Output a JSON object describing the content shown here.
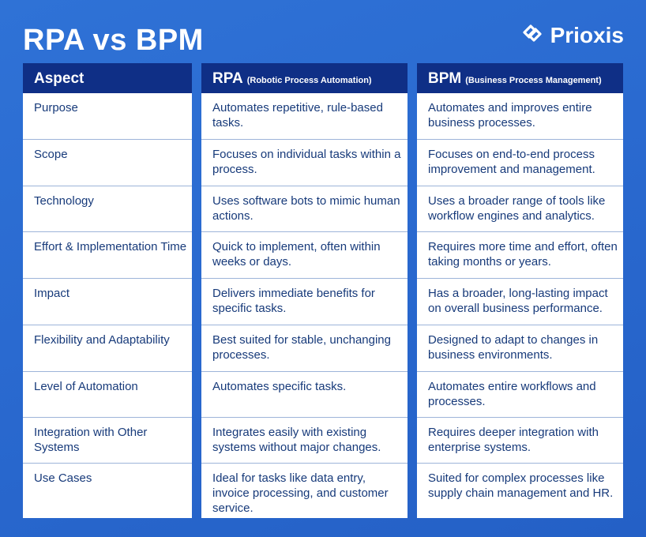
{
  "title": "RPA vs BPM",
  "brand": {
    "name": "Prioxis",
    "icon": "prioxis-logo-icon"
  },
  "colors": {
    "header_bg": "#0f2f86",
    "page_bg": "#2a6ad0",
    "text": "#173a7a"
  },
  "columns": {
    "aspect": {
      "title": "Aspect",
      "subtitle": ""
    },
    "rpa": {
      "title": "RPA",
      "subtitle": "(Robotic Process Automation)"
    },
    "bpm": {
      "title": "BPM",
      "subtitle": "(Business Process Management)"
    }
  },
  "rows": [
    {
      "aspect": "Purpose",
      "rpa": "Automates repetitive, rule-based tasks.",
      "bpm": "Automates and improves entire business processes."
    },
    {
      "aspect": "Scope",
      "rpa": "Focuses on individual tasks within a process.",
      "bpm": "Focuses on end-to-end process improvement and management."
    },
    {
      "aspect": "Technology",
      "rpa": "Uses software bots to mimic human actions.",
      "bpm": "Uses a broader range of tools like workflow engines and analytics."
    },
    {
      "aspect": "Effort & Implementation Time",
      "rpa": "Quick to implement, often within weeks or days.",
      "bpm": "Requires more time and effort, often taking months or years."
    },
    {
      "aspect": "Impact",
      "rpa": "Delivers immediate benefits for specific tasks.",
      "bpm": "Has a broader, long-lasting impact on overall business performance."
    },
    {
      "aspect": "Flexibility and Adaptability",
      "rpa": "Best suited for stable, unchanging processes.",
      "bpm": "Designed to adapt to changes in business environments."
    },
    {
      "aspect": "Level of Automation",
      "rpa": "Automates specific tasks.",
      "bpm": "Automates entire workflows and processes."
    },
    {
      "aspect": "Integration with Other Systems",
      "rpa": "Integrates easily with existing systems without major changes.",
      "bpm": "Requires deeper integration with enterprise systems."
    },
    {
      "aspect": "Use Cases",
      "rpa": "Ideal for tasks like data entry, invoice processing, and customer service.",
      "bpm": "Suited for complex processes like supply chain management and HR."
    }
  ]
}
